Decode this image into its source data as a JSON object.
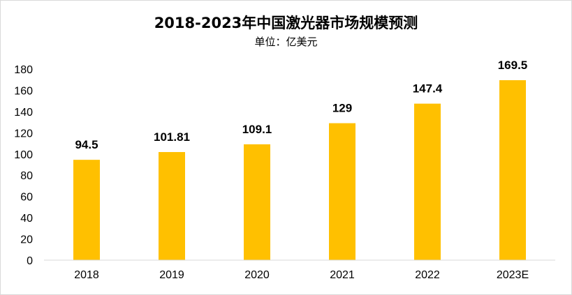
{
  "chart_data": {
    "type": "bar",
    "title": "2018-2023年中国激光器市场规模预测",
    "subtitle": "单位：亿美元",
    "categories": [
      "2018",
      "2019",
      "2020",
      "2021",
      "2022",
      "2023E"
    ],
    "values": [
      94.5,
      101.81,
      109.1,
      129,
      147.4,
      169.5
    ],
    "data_labels": [
      "94.5",
      "101.81",
      "109.1",
      "129",
      "147.4",
      "169.5"
    ],
    "y_ticks": [
      "0",
      "20",
      "40",
      "60",
      "80",
      "100",
      "120",
      "140",
      "160",
      "180"
    ],
    "ylim": [
      0,
      180
    ],
    "grid": false,
    "legend": "none",
    "bar_color": "#FFC000"
  }
}
